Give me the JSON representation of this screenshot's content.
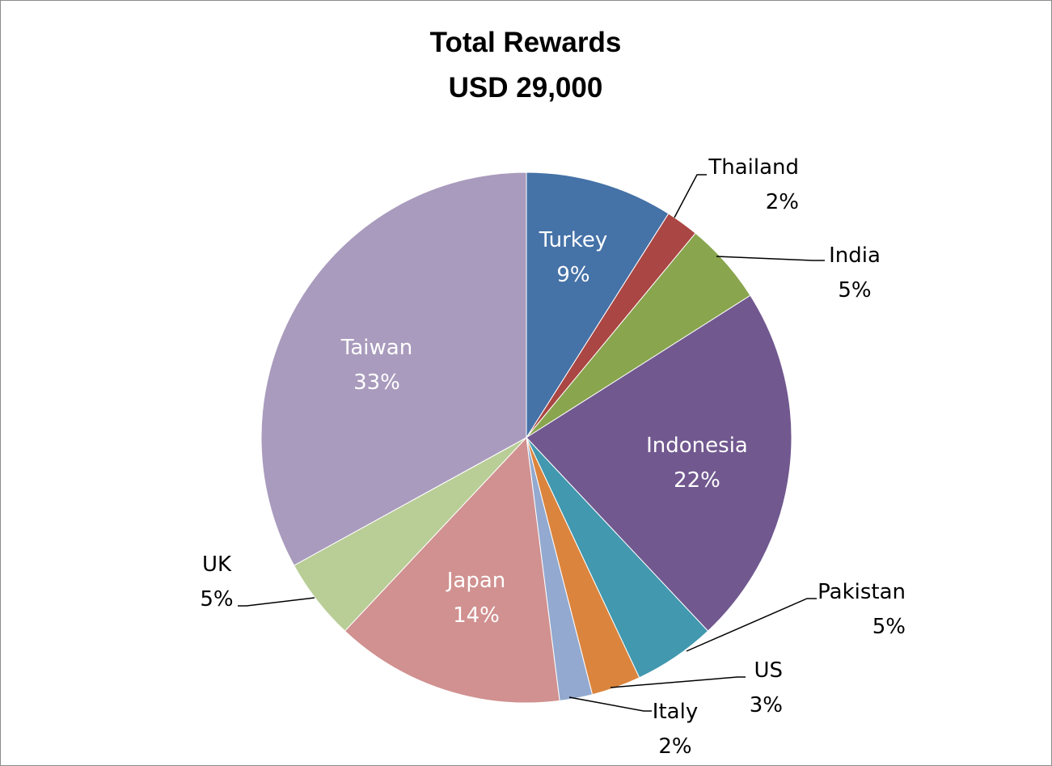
{
  "chart_data": {
    "type": "pie",
    "title": "Total Rewards",
    "subtitle": "USD 29,000",
    "slices": [
      {
        "name": "Turkey",
        "value": 9,
        "label": "9%",
        "color": "#4572A7",
        "placement": "inside"
      },
      {
        "name": "Thailand",
        "value": 2,
        "label": "2%",
        "color": "#AA4643",
        "placement": "outside"
      },
      {
        "name": "India",
        "value": 5,
        "label": "5%",
        "color": "#89A54E",
        "placement": "outside"
      },
      {
        "name": "Indonesia",
        "value": 22,
        "label": "22%",
        "color": "#71588F",
        "placement": "inside"
      },
      {
        "name": "Pakistan",
        "value": 5,
        "label": "5%",
        "color": "#4198AF",
        "placement": "outside"
      },
      {
        "name": "US",
        "value": 3,
        "label": "3%",
        "color": "#DB843D",
        "placement": "outside"
      },
      {
        "name": "Italy",
        "value": 2,
        "label": "2%",
        "color": "#93A9CF",
        "placement": "outside"
      },
      {
        "name": "Japan",
        "value": 14,
        "label": "14%",
        "color": "#D09190",
        "placement": "inside"
      },
      {
        "name": "UK",
        "value": 5,
        "label": "5%",
        "color": "#B9CD96",
        "placement": "outside"
      },
      {
        "name": "Taiwan",
        "value": 33,
        "label": "33%",
        "color": "#A99BBD",
        "placement": "inside"
      }
    ],
    "start_angle": "12 o'clock",
    "direction": "clockwise",
    "legend": "none"
  }
}
